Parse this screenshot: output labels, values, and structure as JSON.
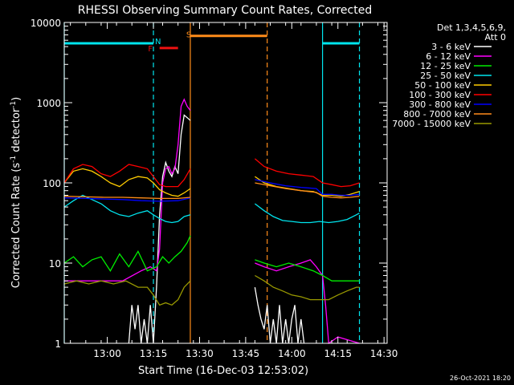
{
  "chart_data": {
    "type": "line",
    "title": "RHESSI Observing Summary Count Rates, Corrected",
    "xlabel": "Start Time (16-Dec-03 12:53:02)",
    "ylabel_main": "Corrected Count Rate (s",
    "ylabel_sup1": "-1",
    "ylabel_mid": " detector",
    "ylabel_sup2": "-1",
    "ylabel_end": ")",
    "y_scale": "log",
    "ylim": [
      1,
      10000
    ],
    "xlim_minutes": [
      -7,
      85
    ],
    "x_ticks": [
      {
        "m": 7,
        "label": "13:00"
      },
      {
        "m": 22,
        "label": "13:15"
      },
      {
        "m": 37,
        "label": "13:30"
      },
      {
        "m": 52,
        "label": "13:45"
      },
      {
        "m": 67,
        "label": "14:00"
      },
      {
        "m": 82,
        "label": "14:15"
      },
      {
        "m": 97,
        "label": "14:30"
      }
    ],
    "y_ticks": [
      {
        "v": 1,
        "label": "1"
      },
      {
        "v": 10,
        "label": "10"
      },
      {
        "v": 100,
        "label": "100"
      },
      {
        "v": 1000,
        "label": "1000"
      },
      {
        "v": 10000,
        "label": "10000"
      }
    ],
    "legend_header": [
      "Det 1,3,4,5,6,9,",
      "Att 0"
    ],
    "legend_position": "right",
    "timestamp": "26-Oct-2021 18:20",
    "gaps": [
      [
        34,
        55
      ]
    ],
    "markers": [
      {
        "kind": "bar",
        "color": "#00e5ee",
        "from": -7,
        "to": 22,
        "value": 5500,
        "label": ""
      },
      {
        "kind": "bar",
        "color": "#ff8c1a",
        "from": 34,
        "to": 59,
        "value": 6800,
        "label": ""
      },
      {
        "kind": "bar",
        "color": "#00e5ee",
        "from": 77,
        "to": 89,
        "value": 5500,
        "label": ""
      },
      {
        "kind": "bar",
        "color": "#ee1111",
        "from": 24,
        "to": 30,
        "value": 4800,
        "label": ""
      },
      {
        "kind": "text",
        "color": "#00e5ee",
        "at": 23.5,
        "value": 5900,
        "label": "N"
      },
      {
        "kind": "text",
        "color": "#ee1111",
        "at": 21,
        "value": 4800,
        "label": "F"
      },
      {
        "kind": "text",
        "color": "#ff8c1a",
        "at": 33.5,
        "value": 7200,
        "label": "S"
      }
    ],
    "vlines": [
      {
        "m": -7,
        "color": "#00e5ee",
        "style": "solid"
      },
      {
        "m": 22,
        "color": "#00e5ee",
        "style": "dashed"
      },
      {
        "m": 34,
        "color": "#ff8c1a",
        "style": "solid"
      },
      {
        "m": 59,
        "color": "#ff8c1a",
        "style": "dashed"
      },
      {
        "m": 77,
        "color": "#00e5ee",
        "style": "solid"
      },
      {
        "m": 89,
        "color": "#00e5ee",
        "style": "dashed"
      }
    ],
    "series": [
      {
        "name": "3 - 6 keV",
        "color": "#ffffff",
        "points": [
          [
            14,
            1
          ],
          [
            15,
            3
          ],
          [
            16,
            1.5
          ],
          [
            17,
            3
          ],
          [
            18,
            1
          ],
          [
            19,
            2
          ],
          [
            20,
            1
          ],
          [
            21,
            3
          ],
          [
            22,
            1
          ],
          [
            23,
            5
          ],
          [
            24,
            40
          ],
          [
            25,
            120
          ],
          [
            26,
            180
          ],
          [
            27,
            140
          ],
          [
            28,
            120
          ],
          [
            29,
            160
          ],
          [
            30,
            130
          ],
          [
            31,
            400
          ],
          [
            32,
            700
          ],
          [
            33,
            650
          ],
          [
            34,
            600
          ],
          [
            55,
            5
          ],
          [
            56,
            3
          ],
          [
            57,
            2
          ],
          [
            58,
            1.5
          ],
          [
            59,
            3
          ],
          [
            60,
            1
          ],
          [
            61,
            2
          ],
          [
            62,
            1
          ],
          [
            63,
            3
          ],
          [
            64,
            1
          ],
          [
            65,
            2
          ],
          [
            66,
            1
          ],
          [
            67,
            2
          ],
          [
            68,
            3
          ],
          [
            69,
            1
          ],
          [
            70,
            2
          ],
          [
            71,
            1
          ]
        ]
      },
      {
        "name": "6 - 12 keV",
        "color": "#ff00ff",
        "points": [
          [
            -7,
            6
          ],
          [
            0,
            6
          ],
          [
            6,
            6
          ],
          [
            12,
            6
          ],
          [
            18,
            8
          ],
          [
            21,
            9
          ],
          [
            23,
            8
          ],
          [
            24,
            15
          ],
          [
            25,
            100
          ],
          [
            26,
            150
          ],
          [
            27,
            160
          ],
          [
            28,
            130
          ],
          [
            29,
            150
          ],
          [
            30,
            300
          ],
          [
            31,
            900
          ],
          [
            32,
            1100
          ],
          [
            33,
            900
          ],
          [
            34,
            800
          ],
          [
            55,
            10
          ],
          [
            58,
            9
          ],
          [
            62,
            8
          ],
          [
            66,
            9
          ],
          [
            70,
            10
          ],
          [
            73,
            11
          ],
          [
            75,
            9
          ],
          [
            77,
            7
          ],
          [
            78,
            3
          ],
          [
            79,
            1
          ],
          [
            82,
            1.2
          ],
          [
            89,
            1
          ]
        ]
      },
      {
        "name": "12 - 25 keV",
        "color": "#00ee00",
        "points": [
          [
            -7,
            10
          ],
          [
            -4,
            12
          ],
          [
            -1,
            9
          ],
          [
            2,
            11
          ],
          [
            5,
            12
          ],
          [
            8,
            8
          ],
          [
            11,
            13
          ],
          [
            14,
            9
          ],
          [
            17,
            14
          ],
          [
            20,
            8
          ],
          [
            23,
            9
          ],
          [
            25,
            12
          ],
          [
            27,
            10
          ],
          [
            29,
            12
          ],
          [
            31,
            14
          ],
          [
            33,
            18
          ],
          [
            34,
            22
          ],
          [
            55,
            11
          ],
          [
            58,
            10
          ],
          [
            62,
            9
          ],
          [
            66,
            10
          ],
          [
            70,
            9
          ],
          [
            74,
            8
          ],
          [
            77,
            7
          ],
          [
            80,
            6
          ],
          [
            83,
            6
          ],
          [
            86,
            6
          ],
          [
            89,
            6
          ]
        ]
      },
      {
        "name": "25 - 50 keV",
        "color": "#00e5ee",
        "points": [
          [
            -7,
            50
          ],
          [
            -4,
            60
          ],
          [
            -1,
            70
          ],
          [
            2,
            62
          ],
          [
            5,
            55
          ],
          [
            8,
            45
          ],
          [
            11,
            40
          ],
          [
            14,
            38
          ],
          [
            17,
            42
          ],
          [
            20,
            45
          ],
          [
            22,
            40
          ],
          [
            24,
            36
          ],
          [
            26,
            33
          ],
          [
            28,
            32
          ],
          [
            30,
            33
          ],
          [
            32,
            38
          ],
          [
            34,
            40
          ],
          [
            55,
            55
          ],
          [
            58,
            45
          ],
          [
            61,
            38
          ],
          [
            64,
            34
          ],
          [
            67,
            33
          ],
          [
            70,
            32
          ],
          [
            73,
            32
          ],
          [
            76,
            33
          ],
          [
            79,
            32
          ],
          [
            82,
            33
          ],
          [
            85,
            35
          ],
          [
            88,
            40
          ],
          [
            89,
            42
          ]
        ]
      },
      {
        "name": "50 - 100 keV",
        "color": "#ffcc00",
        "points": [
          [
            -7,
            100
          ],
          [
            -4,
            140
          ],
          [
            -1,
            150
          ],
          [
            2,
            140
          ],
          [
            5,
            120
          ],
          [
            8,
            100
          ],
          [
            11,
            90
          ],
          [
            14,
            110
          ],
          [
            17,
            120
          ],
          [
            20,
            115
          ],
          [
            22,
            100
          ],
          [
            24,
            82
          ],
          [
            26,
            75
          ],
          [
            28,
            70
          ],
          [
            30,
            68
          ],
          [
            32,
            75
          ],
          [
            34,
            85
          ],
          [
            55,
            120
          ],
          [
            58,
            100
          ],
          [
            62,
            90
          ],
          [
            66,
            85
          ],
          [
            70,
            80
          ],
          [
            74,
            78
          ],
          [
            77,
            70
          ],
          [
            80,
            70
          ],
          [
            83,
            68
          ],
          [
            86,
            72
          ],
          [
            89,
            78
          ]
        ]
      },
      {
        "name": "100 - 300 keV",
        "color": "#ff0000",
        "points": [
          [
            -7,
            100
          ],
          [
            -4,
            150
          ],
          [
            -1,
            170
          ],
          [
            2,
            160
          ],
          [
            5,
            130
          ],
          [
            8,
            120
          ],
          [
            11,
            140
          ],
          [
            14,
            170
          ],
          [
            17,
            160
          ],
          [
            20,
            150
          ],
          [
            22,
            120
          ],
          [
            24,
            95
          ],
          [
            26,
            90
          ],
          [
            28,
            90
          ],
          [
            30,
            90
          ],
          [
            32,
            110
          ],
          [
            34,
            150
          ],
          [
            55,
            200
          ],
          [
            58,
            160
          ],
          [
            62,
            140
          ],
          [
            66,
            130
          ],
          [
            70,
            125
          ],
          [
            74,
            120
          ],
          [
            77,
            100
          ],
          [
            80,
            95
          ],
          [
            83,
            90
          ],
          [
            86,
            92
          ],
          [
            89,
            100
          ]
        ]
      },
      {
        "name": "300 - 800 keV",
        "color": "#0000ff",
        "points": [
          [
            -7,
            65
          ],
          [
            0,
            64
          ],
          [
            6,
            63
          ],
          [
            12,
            62
          ],
          [
            18,
            60
          ],
          [
            24,
            59
          ],
          [
            30,
            60
          ],
          [
            34,
            65
          ],
          [
            55,
            110
          ],
          [
            60,
            100
          ],
          [
            65,
            92
          ],
          [
            70,
            88
          ],
          [
            75,
            85
          ],
          [
            77,
            72
          ],
          [
            80,
            72
          ],
          [
            83,
            70
          ],
          [
            86,
            70
          ],
          [
            89,
            72
          ]
        ]
      },
      {
        "name": "800 - 7000 keV",
        "color": "#ff8c1a",
        "points": [
          [
            -7,
            68
          ],
          [
            0,
            67
          ],
          [
            6,
            66
          ],
          [
            12,
            66
          ],
          [
            18,
            65
          ],
          [
            24,
            64
          ],
          [
            30,
            64
          ],
          [
            34,
            66
          ],
          [
            55,
            100
          ],
          [
            60,
            92
          ],
          [
            65,
            85
          ],
          [
            70,
            80
          ],
          [
            75,
            76
          ],
          [
            77,
            68
          ],
          [
            80,
            66
          ],
          [
            83,
            65
          ],
          [
            86,
            66
          ],
          [
            89,
            68
          ]
        ]
      },
      {
        "name": "7000 - 15000 keV",
        "color": "#999900",
        "points": [
          [
            -7,
            5.5
          ],
          [
            -3,
            6
          ],
          [
            1,
            5.5
          ],
          [
            5,
            6
          ],
          [
            9,
            5.5
          ],
          [
            13,
            6
          ],
          [
            17,
            5
          ],
          [
            20,
            5
          ],
          [
            22,
            4
          ],
          [
            24,
            3
          ],
          [
            26,
            3.2
          ],
          [
            28,
            3
          ],
          [
            30,
            3.5
          ],
          [
            32,
            5
          ],
          [
            34,
            6
          ],
          [
            55,
            7
          ],
          [
            58,
            6
          ],
          [
            61,
            5
          ],
          [
            64,
            4.5
          ],
          [
            67,
            4
          ],
          [
            70,
            3.8
          ],
          [
            73,
            3.5
          ],
          [
            76,
            3.5
          ],
          [
            79,
            3.5
          ],
          [
            82,
            4
          ],
          [
            85,
            4.5
          ],
          [
            88,
            5
          ],
          [
            89,
            5
          ]
        ]
      }
    ]
  }
}
